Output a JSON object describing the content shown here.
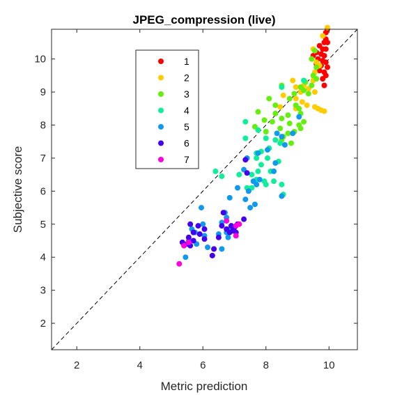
{
  "chart_data": {
    "type": "scatter",
    "title": "JPEG_compression (live)",
    "xlabel": "Metric prediction",
    "ylabel": "Subjective score",
    "xlim": [
      1.2,
      10.9
    ],
    "ylim": [
      1.2,
      10.9
    ],
    "xticks": [
      2,
      4,
      6,
      8,
      10
    ],
    "yticks": [
      2,
      3,
      4,
      5,
      6,
      7,
      8,
      9,
      10
    ],
    "grid": false,
    "legend_position": "top-left",
    "reference_line": "dashed diagonal y = x",
    "colors": {
      "1": "#ff0000",
      "2": "#ffcc00",
      "3": "#66ee11",
      "4": "#11ee99",
      "5": "#1199ee",
      "6": "#4400ee",
      "7": "#ff00dd"
    },
    "series": [
      {
        "name": "1",
        "points": [
          [
            9.95,
            10.9
          ],
          [
            9.9,
            10.8
          ],
          [
            9.9,
            10.6
          ],
          [
            9.95,
            10.5
          ],
          [
            9.85,
            10.5
          ],
          [
            9.7,
            10.4
          ],
          [
            9.8,
            10.3
          ],
          [
            9.9,
            10.3
          ],
          [
            9.6,
            10.2
          ],
          [
            9.75,
            10.15
          ],
          [
            9.5,
            10.1
          ],
          [
            9.85,
            10.1
          ],
          [
            9.65,
            10.0
          ],
          [
            9.8,
            9.95
          ],
          [
            9.9,
            9.9
          ],
          [
            9.6,
            9.85
          ],
          [
            9.75,
            9.8
          ],
          [
            9.95,
            9.75
          ],
          [
            9.7,
            9.65
          ],
          [
            9.85,
            9.6
          ],
          [
            9.9,
            9.5
          ],
          [
            9.8,
            9.4
          ],
          [
            9.85,
            9.2
          ]
        ]
      },
      {
        "name": "2",
        "points": [
          [
            9.95,
            10.95
          ],
          [
            9.8,
            10.7
          ],
          [
            9.5,
            10.3
          ],
          [
            9.45,
            10.0
          ],
          [
            9.6,
            9.9
          ],
          [
            9.7,
            9.8
          ],
          [
            9.55,
            9.6
          ],
          [
            9.5,
            9.35
          ],
          [
            9.2,
            9.2
          ],
          [
            9.35,
            9.1
          ],
          [
            9.55,
            9.0
          ],
          [
            8.85,
            9.35
          ],
          [
            8.95,
            9.15
          ],
          [
            9.1,
            9.0
          ],
          [
            8.95,
            8.8
          ],
          [
            9.15,
            8.7
          ],
          [
            9.3,
            8.6
          ],
          [
            9.55,
            8.55
          ],
          [
            9.65,
            8.5
          ],
          [
            9.75,
            8.45
          ],
          [
            9.85,
            8.42
          ],
          [
            8.45,
            8.55
          ],
          [
            8.95,
            8.5
          ],
          [
            8.55,
            8.9
          ]
        ]
      },
      {
        "name": "3",
        "points": [
          [
            9.55,
            10.25
          ],
          [
            9.45,
            10.0
          ],
          [
            9.6,
            9.75
          ],
          [
            9.5,
            9.5
          ],
          [
            9.6,
            9.4
          ],
          [
            9.25,
            9.3
          ],
          [
            9.45,
            9.2
          ],
          [
            9.1,
            9.15
          ],
          [
            8.5,
            9.2
          ],
          [
            9.2,
            9.05
          ],
          [
            9.35,
            8.95
          ],
          [
            8.9,
            8.95
          ],
          [
            8.75,
            8.8
          ],
          [
            8.1,
            8.8
          ],
          [
            8.3,
            8.6
          ],
          [
            8.95,
            8.6
          ],
          [
            9.05,
            8.5
          ],
          [
            9.1,
            8.35
          ],
          [
            7.75,
            8.4
          ],
          [
            8.3,
            8.35
          ],
          [
            8.7,
            8.3
          ],
          [
            8.5,
            8.2
          ],
          [
            8.2,
            8.1
          ],
          [
            7.95,
            8.15
          ],
          [
            9.2,
            8.1
          ],
          [
            8.75,
            8.05
          ],
          [
            9.05,
            8.0
          ],
          [
            8.45,
            7.9
          ],
          [
            8.0,
            7.8
          ],
          [
            8.7,
            7.75
          ],
          [
            8.55,
            7.65
          ],
          [
            8.5,
            7.55
          ],
          [
            8.8,
            7.45
          ],
          [
            9.1,
            7.9
          ],
          [
            8.9,
            7.8
          ],
          [
            7.65,
            7.95
          ]
        ]
      },
      {
        "name": "4",
        "points": [
          [
            9.2,
            9.35
          ],
          [
            8.5,
            9.15
          ],
          [
            7.35,
            8.1
          ],
          [
            7.75,
            7.85
          ],
          [
            7.35,
            7.6
          ],
          [
            8.0,
            7.6
          ],
          [
            8.3,
            7.55
          ],
          [
            7.85,
            7.2
          ],
          [
            7.7,
            7.15
          ],
          [
            8.1,
            7.3
          ],
          [
            8.45,
            7.45
          ],
          [
            7.7,
            7.0
          ],
          [
            8.05,
            7.0
          ],
          [
            7.85,
            6.8
          ],
          [
            8.4,
            6.9
          ],
          [
            7.55,
            6.5
          ],
          [
            6.4,
            6.6
          ],
          [
            7.15,
            6.5
          ],
          [
            6.6,
            6.45
          ],
          [
            7.75,
            6.6
          ],
          [
            8.15,
            6.6
          ],
          [
            7.95,
            6.3
          ],
          [
            8.0,
            6.2
          ],
          [
            8.5,
            6.2
          ],
          [
            7.4,
            6.1
          ],
          [
            7.55,
            6.1
          ],
          [
            7.7,
            6.35
          ],
          [
            8.55,
            5.9
          ],
          [
            8.25,
            6.3
          ]
        ]
      },
      {
        "name": "5",
        "points": [
          [
            9.05,
            8.25
          ],
          [
            8.85,
            7.75
          ],
          [
            8.35,
            7.75
          ],
          [
            8.5,
            7.65
          ],
          [
            8.6,
            7.4
          ],
          [
            8.05,
            7.25
          ],
          [
            7.75,
            7.15
          ],
          [
            7.4,
            7.0
          ],
          [
            7.3,
            6.65
          ],
          [
            8.3,
            6.85
          ],
          [
            8.25,
            6.6
          ],
          [
            7.8,
            6.35
          ],
          [
            7.6,
            6.3
          ],
          [
            7.1,
            6.1
          ],
          [
            7.7,
            6.2
          ],
          [
            7.45,
            6.0
          ],
          [
            7.35,
            5.75
          ],
          [
            6.85,
            5.8
          ],
          [
            7.65,
            5.6
          ],
          [
            7.5,
            5.5
          ],
          [
            8.5,
            5.85
          ],
          [
            5.95,
            5.5
          ],
          [
            6.7,
            5.35
          ],
          [
            6.75,
            5.2
          ],
          [
            6.6,
            5.05
          ],
          [
            6.0,
            5.0
          ],
          [
            5.65,
            4.85
          ],
          [
            5.75,
            4.75
          ],
          [
            6.9,
            4.95
          ],
          [
            6.75,
            4.75
          ],
          [
            6.5,
            4.7
          ],
          [
            5.55,
            4.5
          ],
          [
            5.8,
            4.4
          ],
          [
            6.15,
            4.3
          ],
          [
            6.05,
            4.65
          ],
          [
            6.6,
            4.25
          ],
          [
            5.45,
            4.0
          ],
          [
            6.85,
            4.85
          ],
          [
            6.8,
            4.6
          ]
        ]
      },
      {
        "name": "6",
        "points": [
          [
            7.35,
            6.95
          ],
          [
            7.4,
            6.55
          ],
          [
            6.65,
            5.35
          ],
          [
            7.1,
            5.0
          ],
          [
            7.3,
            5.15
          ],
          [
            6.6,
            4.95
          ],
          [
            5.6,
            5.0
          ],
          [
            5.85,
            4.95
          ],
          [
            6.05,
            4.85
          ],
          [
            5.7,
            4.75
          ],
          [
            5.9,
            4.7
          ],
          [
            6.05,
            4.55
          ],
          [
            5.55,
            4.6
          ],
          [
            5.7,
            4.5
          ],
          [
            5.5,
            4.4
          ],
          [
            5.6,
            4.35
          ],
          [
            6.9,
            4.95
          ],
          [
            7.0,
            4.9
          ],
          [
            6.5,
            4.6
          ],
          [
            6.75,
            4.85
          ],
          [
            6.85,
            4.75
          ],
          [
            6.95,
            4.8
          ],
          [
            7.05,
            4.75
          ],
          [
            6.35,
            4.25
          ],
          [
            6.3,
            4.05
          ],
          [
            5.35,
            4.45
          ]
        ]
      },
      {
        "name": "7",
        "points": [
          [
            6.75,
            5.1
          ],
          [
            7.05,
            4.95
          ],
          [
            7.15,
            5.0
          ],
          [
            7.05,
            4.65
          ],
          [
            5.55,
            4.45
          ],
          [
            5.4,
            4.35
          ],
          [
            5.25,
            3.8
          ]
        ]
      }
    ]
  }
}
